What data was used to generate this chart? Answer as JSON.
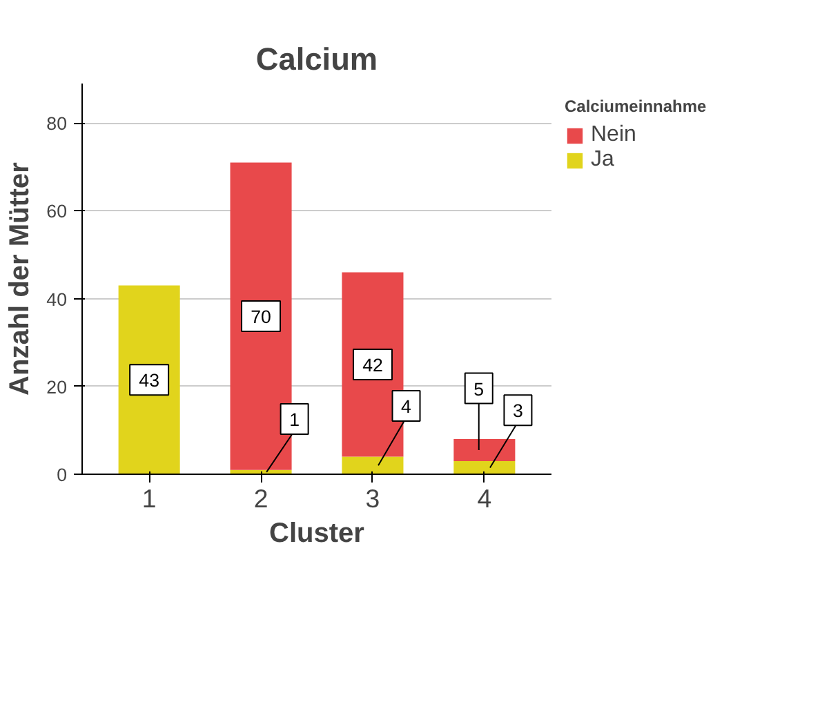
{
  "chart_data": {
    "type": "bar",
    "title": "Calcium",
    "xlabel": "Cluster",
    "ylabel": "Anzahl der Mütter",
    "legend_title": "Calciumeinnahme",
    "categories": [
      "1",
      "2",
      "3",
      "4"
    ],
    "series": [
      {
        "name": "Ja",
        "color": "#e1d41c",
        "values": [
          43,
          1,
          4,
          3
        ]
      },
      {
        "name": "Nein",
        "color": "#e8494b",
        "values": [
          null,
          70,
          42,
          5
        ]
      }
    ],
    "stacked": true,
    "ylim": [
      0,
      89
    ],
    "yticks": [
      0,
      20,
      40,
      60,
      80
    ],
    "grid": "y",
    "legend": "top right",
    "data_labels": true
  }
}
